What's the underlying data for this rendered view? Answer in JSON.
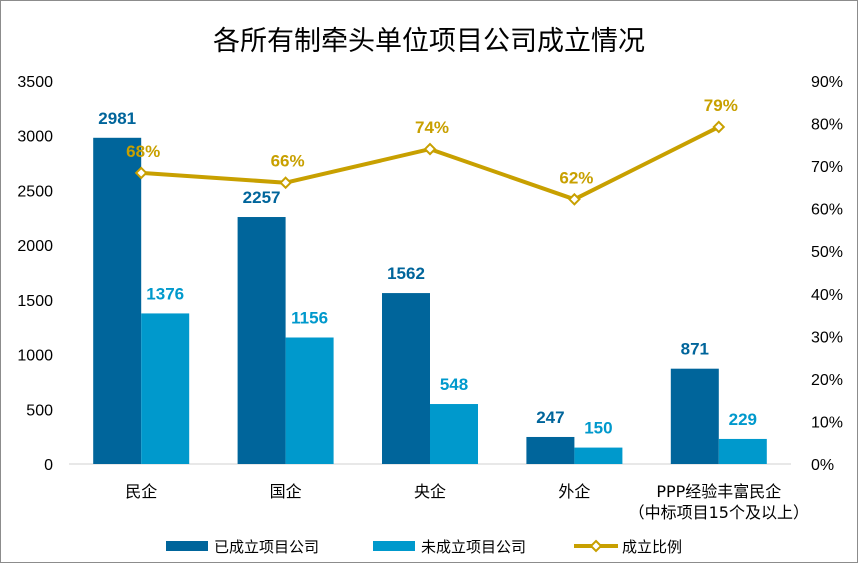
{
  "chart_data": {
    "type": "bar",
    "title": "各所有制牵头单位项目公司成立情况",
    "categories": [
      "民企",
      "国企",
      "央企",
      "外企",
      "PPP经验丰富民企"
    ],
    "category_sublabels": [
      "",
      "",
      "",
      "",
      "（中标项目15个及以上）"
    ],
    "series": [
      {
        "name": "已成立项目公司",
        "type": "bar",
        "axis": "left",
        "color": "#00659b",
        "values": [
          2981,
          2257,
          1562,
          247,
          871
        ],
        "labels": [
          "2981",
          "2257",
          "1562",
          "247",
          "871"
        ]
      },
      {
        "name": "未成立项目公司",
        "type": "bar",
        "axis": "left",
        "color": "#0099cc",
        "values": [
          1376,
          1156,
          548,
          150,
          229
        ],
        "labels": [
          "1376",
          "1156",
          "548",
          "150",
          "229"
        ]
      },
      {
        "name": "成立比例",
        "type": "line",
        "axis": "right",
        "color": "#c8a000",
        "values": [
          0.684,
          0.661,
          0.74,
          0.622,
          0.792
        ],
        "labels": [
          "68%",
          "66%",
          "74%",
          "62%",
          "79%"
        ]
      }
    ],
    "left_axis": {
      "ylim": [
        0,
        3500
      ],
      "ticks": [
        "0",
        "500",
        "1000",
        "1500",
        "2000",
        "2500",
        "3000",
        "3500"
      ]
    },
    "right_axis": {
      "ylim": [
        0,
        0.9
      ],
      "ticks": [
        "0%",
        "10%",
        "20%",
        "30%",
        "40%",
        "50%",
        "60%",
        "70%",
        "80%",
        "90%"
      ]
    },
    "grid": false,
    "legend_position": "bottom"
  }
}
